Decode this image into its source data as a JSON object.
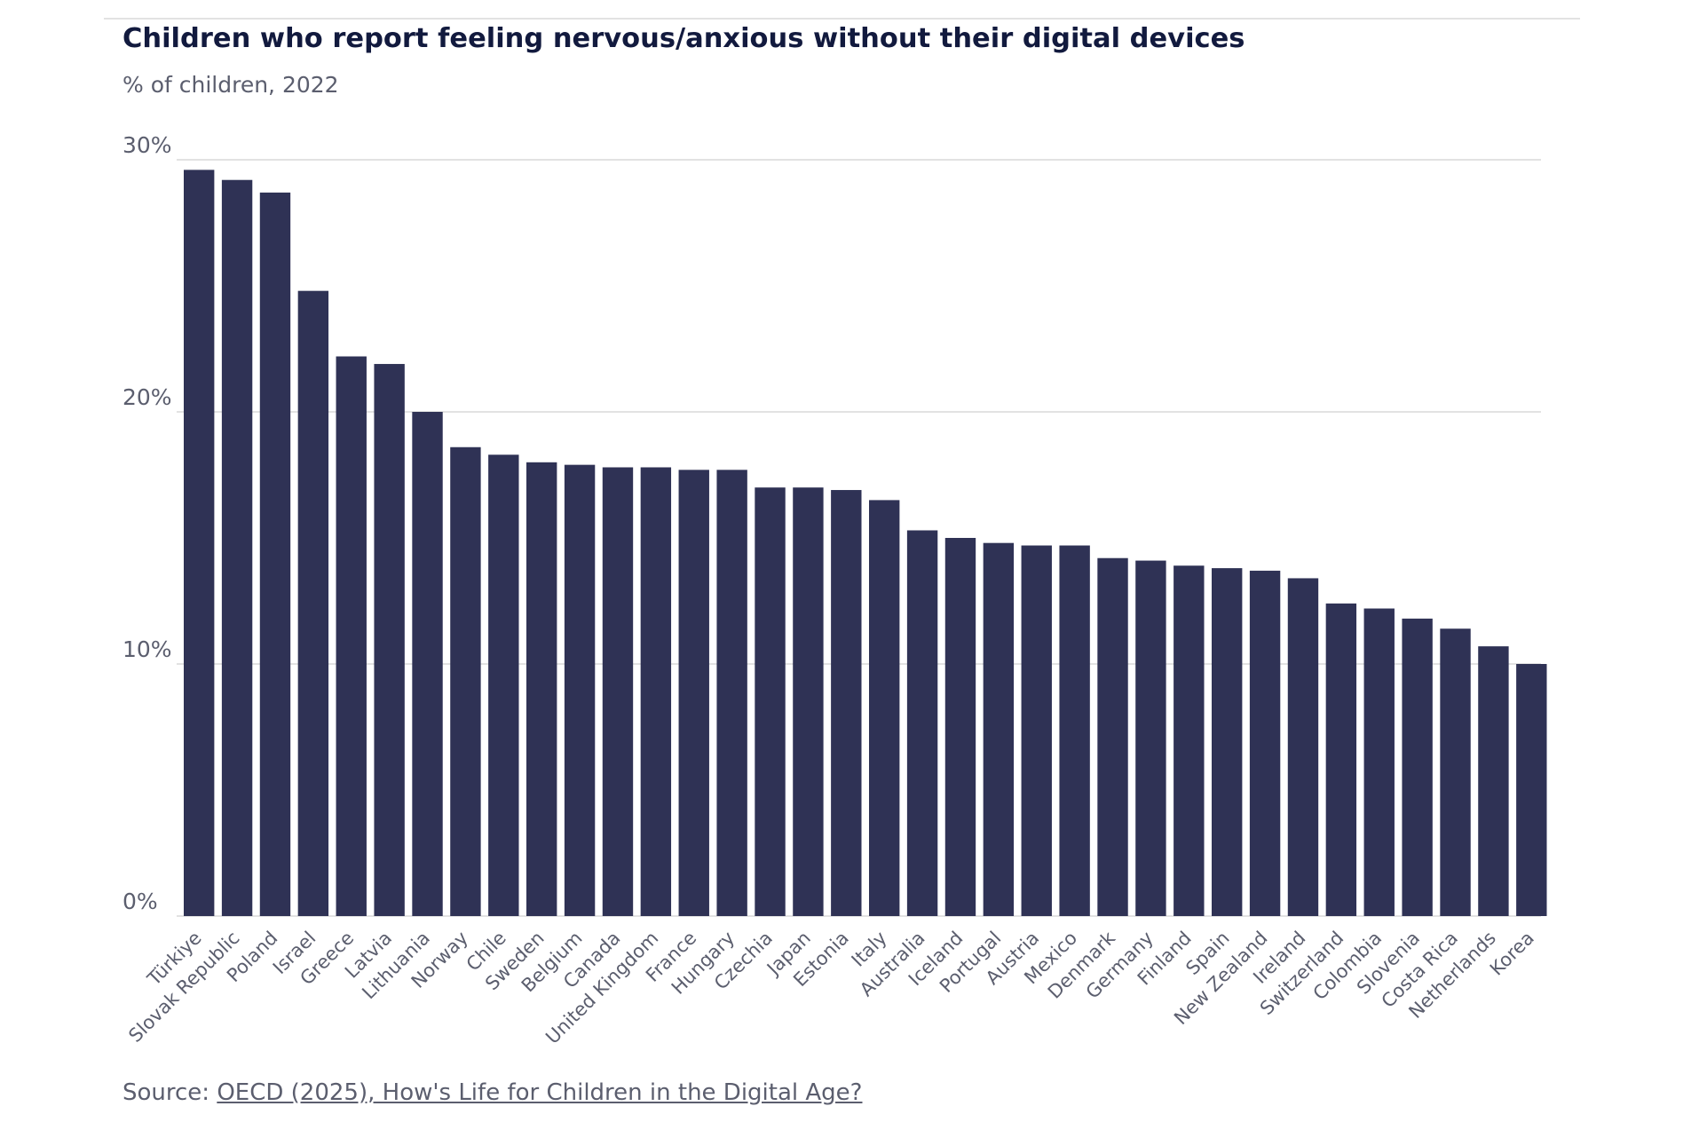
{
  "title": "Children who report feeling nervous/anxious without their digital devices",
  "subtitle": "% of children, 2022",
  "source": {
    "prefix": "Source: ",
    "link_text": "OECD (2025), How's Life for Children in the Digital Age?"
  },
  "colors": {
    "bar": "#2f3255",
    "grid": "#d9d9d9",
    "text": "#5b5e6e",
    "title": "#121a3e"
  },
  "chart_data": {
    "type": "bar",
    "title": "Children who report feeling nervous/anxious without their digital devices",
    "subtitle": "% of children, 2022",
    "xlabel": "",
    "ylabel": "",
    "ylim": [
      0,
      30
    ],
    "yticks": [
      0,
      10,
      20,
      30
    ],
    "ytick_labels": [
      "0%",
      "10%",
      "20%",
      "30%"
    ],
    "grid": true,
    "categories": [
      "Türkiye",
      "Slovak Republic",
      "Poland",
      "Israel",
      "Greece",
      "Latvia",
      "Lithuania",
      "Norway",
      "Chile",
      "Sweden",
      "Belgium",
      "Canada",
      "United Kingdom",
      "France",
      "Hungary",
      "Czechia",
      "Japan",
      "Estonia",
      "Italy",
      "Australia",
      "Iceland",
      "Portugal",
      "Austria",
      "Mexico",
      "Denmark",
      "Germany",
      "Finland",
      "Spain",
      "New Zealand",
      "Ireland",
      "Switzerland",
      "Colombia",
      "Slovenia",
      "Costa Rica",
      "Netherlands",
      "Korea"
    ],
    "values": [
      29.6,
      29.2,
      28.7,
      24.8,
      22.2,
      21.9,
      20.0,
      18.6,
      18.3,
      18.0,
      17.9,
      17.8,
      17.8,
      17.7,
      17.7,
      17.0,
      17.0,
      16.9,
      16.5,
      15.3,
      15.0,
      14.8,
      14.7,
      14.7,
      14.2,
      14.1,
      13.9,
      13.8,
      13.7,
      13.4,
      12.4,
      12.2,
      11.8,
      11.4,
      10.7,
      10.0
    ]
  }
}
